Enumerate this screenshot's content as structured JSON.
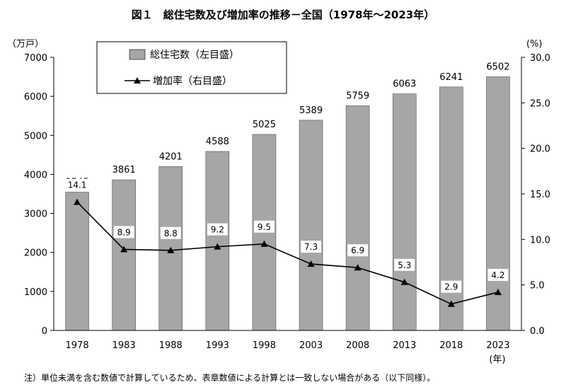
{
  "chart_data": {
    "type": "bar+line",
    "title": "図１　総住宅数及び増加率の推移－全国（1978年～2023年）",
    "categories": [
      "1978",
      "1983",
      "1988",
      "1993",
      "1998",
      "2003",
      "2008",
      "2013",
      "2018",
      "2023"
    ],
    "series": [
      {
        "name": "総住宅数（左目盛）",
        "type": "bar",
        "axis": "left",
        "color": "#a6a6a6",
        "values": [
          3545,
          3861,
          4201,
          4588,
          5025,
          5389,
          5759,
          6063,
          6241,
          6502
        ],
        "labels": [
          "3545",
          "3861",
          "4201",
          "4588",
          "5025",
          "5389",
          "5759",
          "6063",
          "6241",
          "6502"
        ]
      },
      {
        "name": "増加率（右目盛）",
        "type": "line",
        "axis": "right",
        "color": "#000000",
        "marker": "triangle",
        "values": [
          14.1,
          8.9,
          8.8,
          9.2,
          9.5,
          7.3,
          6.9,
          5.3,
          2.9,
          4.2
        ],
        "labels": [
          "14.1",
          "8.9",
          "8.8",
          "9.2",
          "9.5",
          "7.3",
          "6.9",
          "5.3",
          "2.9",
          "4.2"
        ]
      }
    ],
    "left_axis": {
      "unit": "（万戸）",
      "ylim": [
        0,
        7000
      ],
      "ticks": [
        "0",
        "1000",
        "2000",
        "3000",
        "4000",
        "5000",
        "6000",
        "7000"
      ]
    },
    "right_axis": {
      "unit": "(%)",
      "ylim": [
        0,
        30
      ],
      "ticks": [
        "0.0",
        "5.0",
        "10.0",
        "15.0",
        "20.0",
        "25.0",
        "30.0"
      ]
    },
    "x_unit": "(年)",
    "grid": false,
    "legend_position": "top-left"
  },
  "note": "注）単位未満を含む数値で計算しているため、表章数値による計算とは一致しない場合がある（以下同様）。"
}
